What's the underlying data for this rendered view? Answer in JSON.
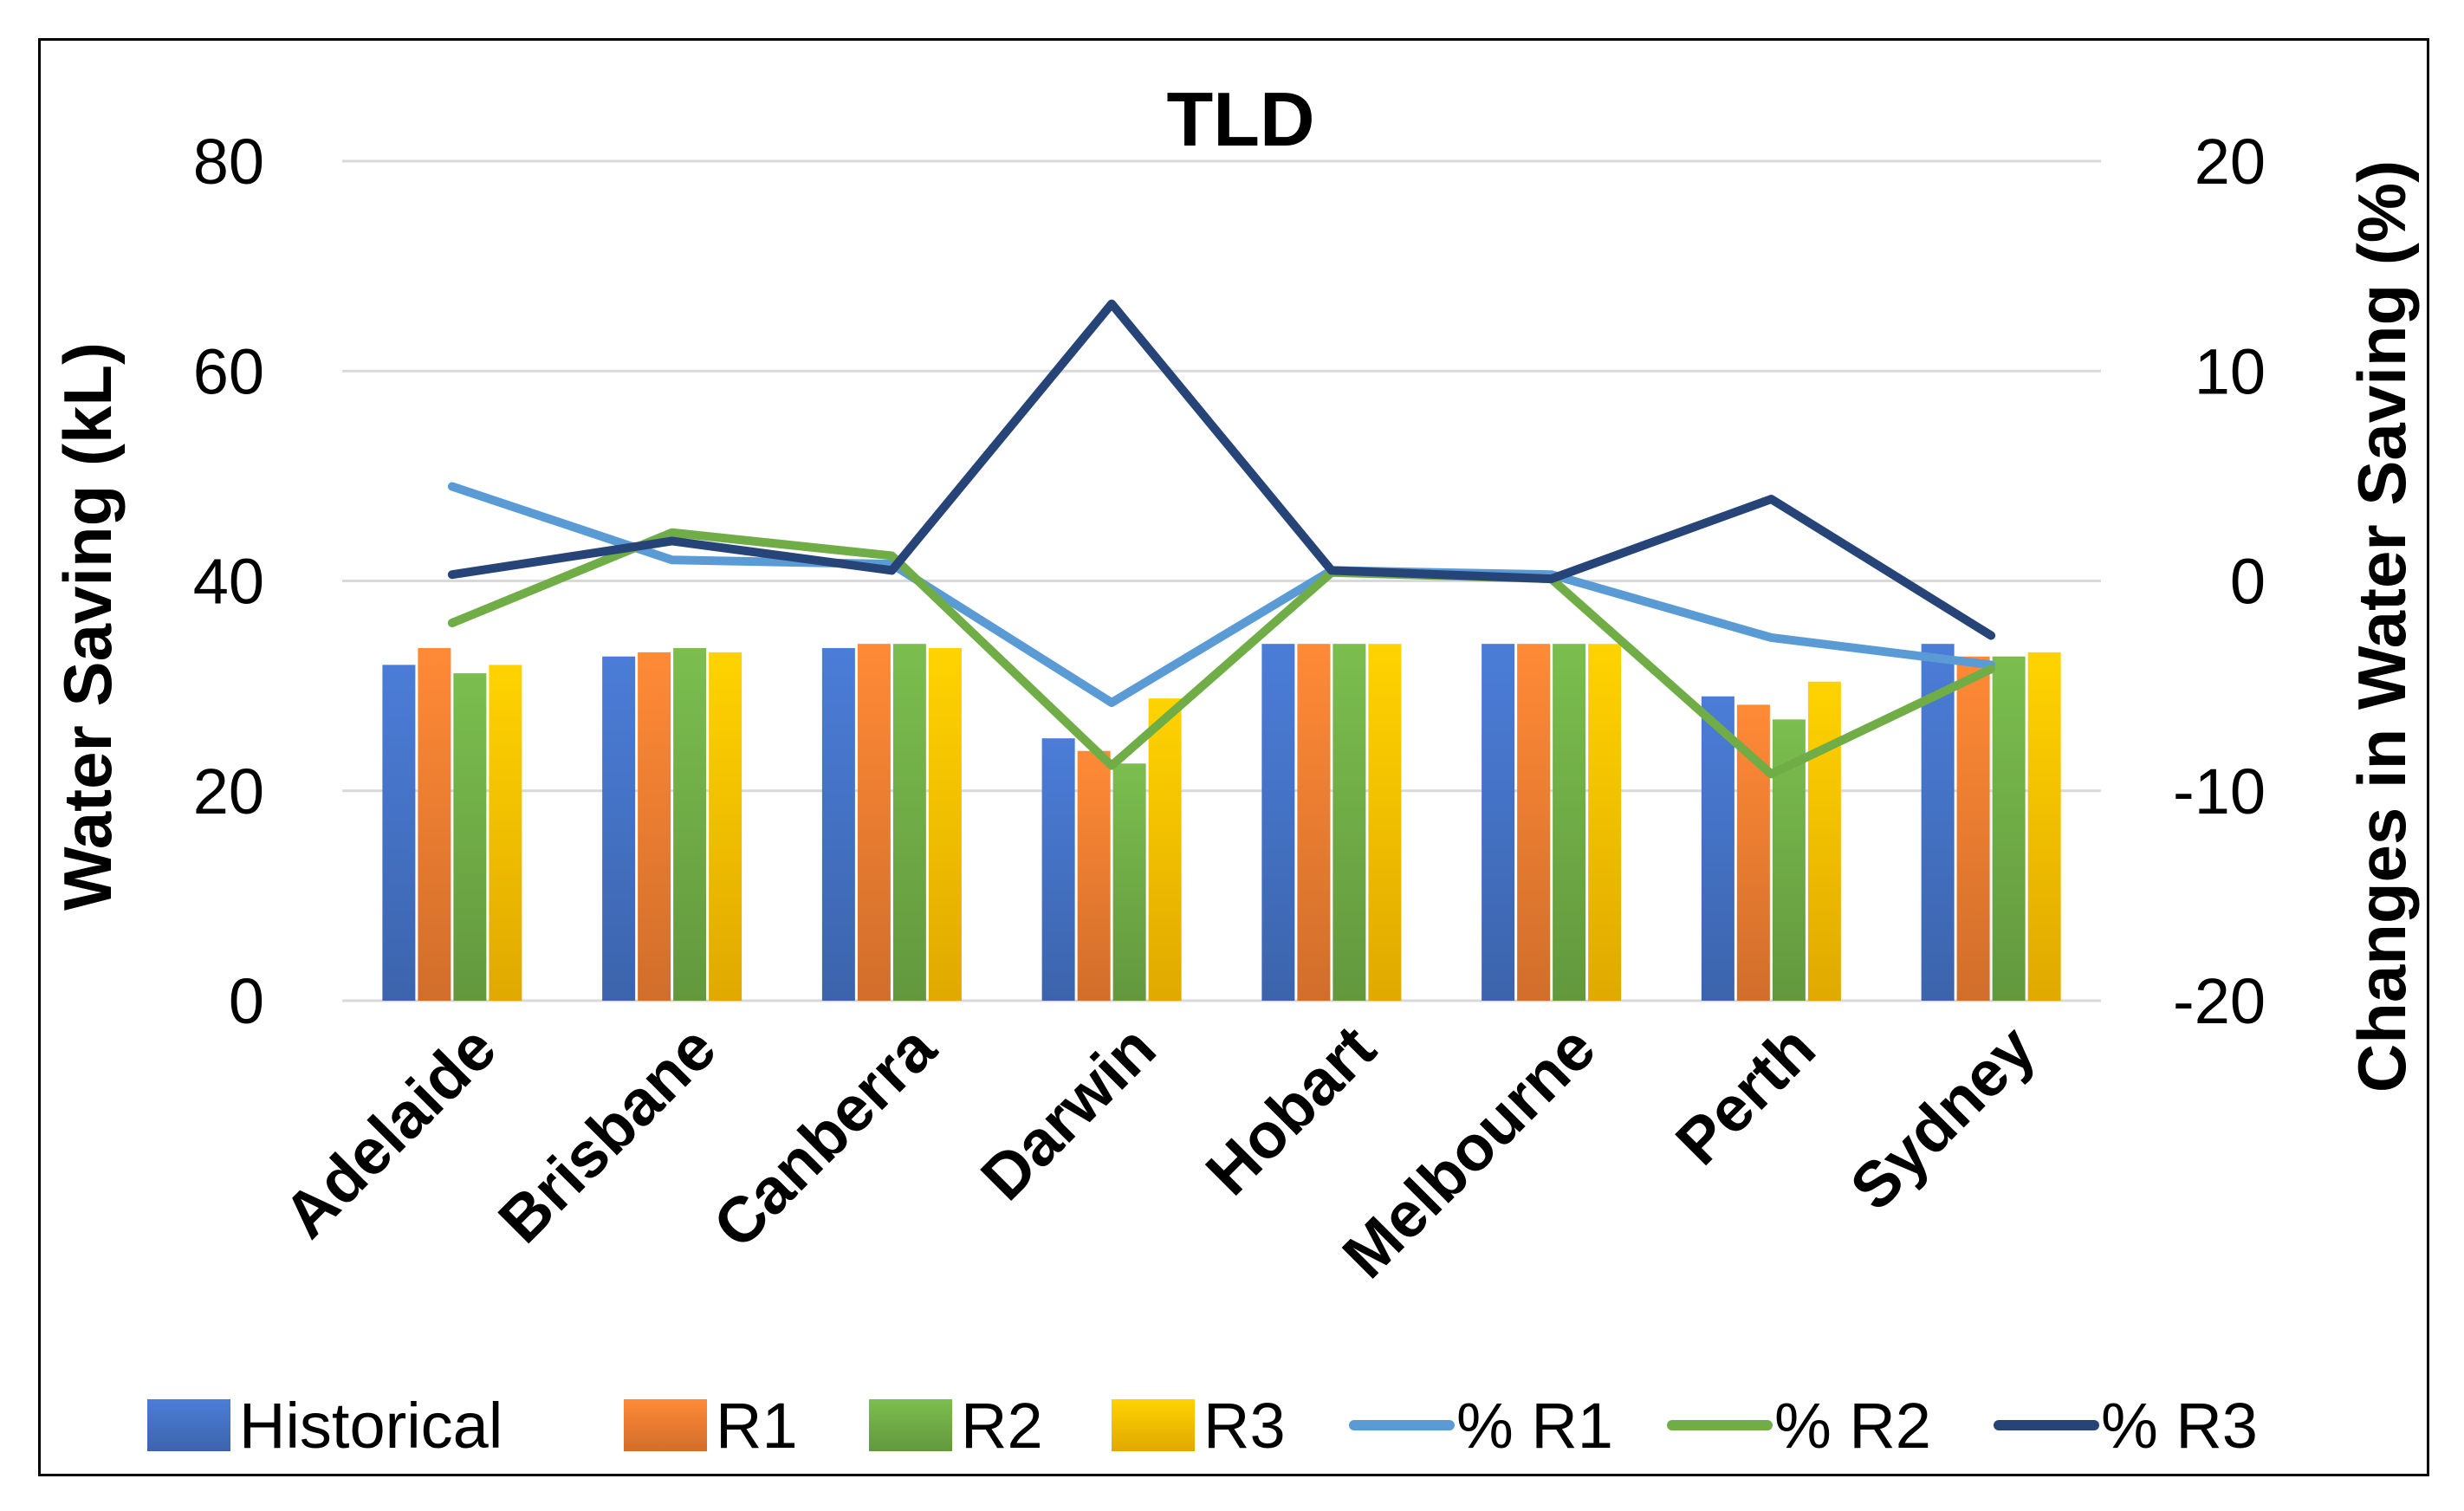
{
  "chart_data": {
    "type": "bar",
    "title": "TLD",
    "ylabel": "Water Saving (kL)",
    "y2label": "Changes in Water Saving (%)",
    "ylim": [
      0,
      80
    ],
    "y2lim": [
      -20,
      20
    ],
    "yticks": [
      0,
      20,
      40,
      60,
      80
    ],
    "y2ticks": [
      -20,
      -10,
      0,
      10,
      20
    ],
    "grid": true,
    "legend_position": "bottom",
    "categories": [
      "Adelaide",
      "Brisbane",
      "Canberra",
      "Darwin",
      "Hobart",
      "Melbourne",
      "Perth",
      "Sydney"
    ],
    "series": [
      {
        "name": "Historical",
        "kind": "bar",
        "axis": "left",
        "color": "#4472C4",
        "values": [
          32,
          32.8,
          33.6,
          25,
          34,
          34,
          29,
          34
        ]
      },
      {
        "name": "R1",
        "kind": "bar",
        "axis": "left",
        "color": "#ED7D31",
        "values": [
          33.6,
          33.2,
          34,
          23.8,
          34,
          34,
          28.2,
          32.8
        ]
      },
      {
        "name": "R2",
        "kind": "bar",
        "axis": "left",
        "color": "#70AD47",
        "values": [
          31.2,
          33.6,
          34,
          22.6,
          34,
          34,
          26.8,
          32.8
        ]
      },
      {
        "name": "R3",
        "kind": "bar",
        "axis": "left",
        "color": "#FFC000",
        "values": [
          32,
          33.2,
          33.6,
          28.8,
          34,
          34,
          30.4,
          33.2
        ]
      },
      {
        "name": "% R1",
        "kind": "line",
        "axis": "right",
        "color": "#5B9BD5",
        "values": [
          4.5,
          1,
          0.8,
          -5.8,
          0.5,
          0.3,
          -2.7,
          -4
        ]
      },
      {
        "name": "% R2",
        "kind": "line",
        "axis": "right",
        "color": "#70AD47",
        "values": [
          -2,
          2.3,
          1.2,
          -8.8,
          0.4,
          0.1,
          -9.2,
          -4.2
        ]
      },
      {
        "name": "% R3",
        "kind": "line",
        "axis": "right",
        "color": "#264478",
        "values": [
          0.3,
          1.9,
          0.5,
          13.2,
          0.5,
          0.1,
          3.9,
          -2.6
        ]
      }
    ]
  }
}
